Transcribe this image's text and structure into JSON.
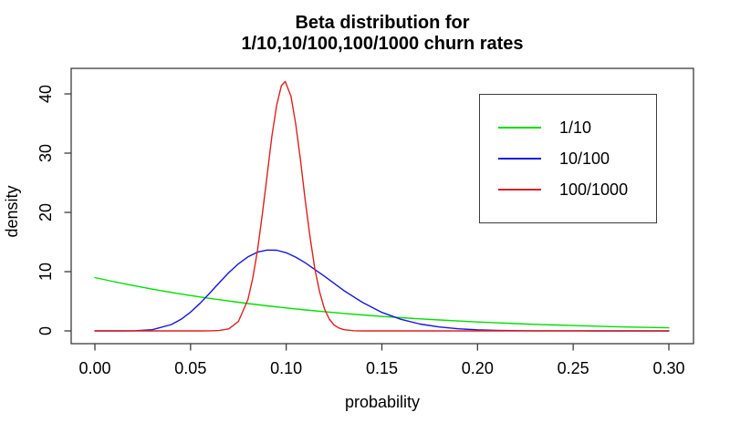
{
  "title": {
    "line1": "Beta distribution for",
    "line2": "1/10,10/100,100/1000 churn rates"
  },
  "chart_data": {
    "type": "line",
    "title": "Beta distribution for 1/10,10/100,100/1000 churn rates",
    "xlabel": "probability",
    "ylabel": "density",
    "xlim": [
      0,
      0.3
    ],
    "ylim": [
      0,
      42.1
    ],
    "grid": false,
    "legend_position": "top-right",
    "x_ticks": [
      0.0,
      0.05,
      0.1,
      0.15,
      0.2,
      0.25,
      0.3
    ],
    "x_tick_labels": [
      "0.00",
      "0.05",
      "0.10",
      "0.15",
      "0.20",
      "0.25",
      "0.30"
    ],
    "y_ticks": [
      0,
      10,
      20,
      30,
      40
    ],
    "y_tick_labels": [
      "0",
      "10",
      "20",
      "30",
      "40"
    ],
    "series": [
      {
        "name": "1/10",
        "color": "#00e000",
        "distribution": "Beta(1,9)",
        "points": [
          [
            0.0,
            9.0
          ],
          [
            0.01,
            8.31
          ],
          [
            0.02,
            7.66
          ],
          [
            0.03,
            7.05
          ],
          [
            0.04,
            6.49
          ],
          [
            0.05,
            5.97
          ],
          [
            0.06,
            5.49
          ],
          [
            0.07,
            5.04
          ],
          [
            0.08,
            4.62
          ],
          [
            0.09,
            4.23
          ],
          [
            0.1,
            3.87
          ],
          [
            0.11,
            3.54
          ],
          [
            0.12,
            3.24
          ],
          [
            0.13,
            2.95
          ],
          [
            0.14,
            2.69
          ],
          [
            0.15,
            2.45
          ],
          [
            0.16,
            2.23
          ],
          [
            0.17,
            2.03
          ],
          [
            0.18,
            1.84
          ],
          [
            0.19,
            1.67
          ],
          [
            0.2,
            1.51
          ],
          [
            0.21,
            1.37
          ],
          [
            0.22,
            1.23
          ],
          [
            0.23,
            1.11
          ],
          [
            0.24,
            1.0
          ],
          [
            0.25,
            0.9
          ],
          [
            0.26,
            0.81
          ],
          [
            0.27,
            0.73
          ],
          [
            0.28,
            0.65
          ],
          [
            0.29,
            0.58
          ],
          [
            0.3,
            0.52
          ]
        ]
      },
      {
        "name": "10/100",
        "color": "#1515e0",
        "distribution": "Beta(10,90)",
        "points": [
          [
            0.0,
            0.0
          ],
          [
            0.01,
            0.0
          ],
          [
            0.02,
            0.01
          ],
          [
            0.03,
            0.2
          ],
          [
            0.04,
            1.08
          ],
          [
            0.045,
            1.96
          ],
          [
            0.05,
            3.17
          ],
          [
            0.055,
            4.66
          ],
          [
            0.06,
            6.37
          ],
          [
            0.065,
            8.14
          ],
          [
            0.07,
            9.84
          ],
          [
            0.075,
            11.33
          ],
          [
            0.08,
            12.5
          ],
          [
            0.085,
            13.29
          ],
          [
            0.09,
            13.65
          ],
          [
            0.095,
            13.61
          ],
          [
            0.1,
            13.19
          ],
          [
            0.105,
            12.44
          ],
          [
            0.11,
            11.5
          ],
          [
            0.12,
            9.21
          ],
          [
            0.13,
            6.83
          ],
          [
            0.14,
            4.78
          ],
          [
            0.15,
            3.13
          ],
          [
            0.16,
            1.95
          ],
          [
            0.17,
            1.16
          ],
          [
            0.18,
            0.66
          ],
          [
            0.19,
            0.36
          ],
          [
            0.2,
            0.19
          ],
          [
            0.21,
            0.1
          ],
          [
            0.22,
            0.05
          ],
          [
            0.23,
            0.02
          ],
          [
            0.24,
            0.01
          ],
          [
            0.25,
            0.01
          ],
          [
            0.26,
            0.0
          ],
          [
            0.28,
            0.0
          ],
          [
            0.3,
            0.0
          ]
        ]
      },
      {
        "name": "100/1000",
        "color": "#e02020",
        "distribution": "Beta(100,900)",
        "points": [
          [
            0.0,
            0.0
          ],
          [
            0.04,
            0.0
          ],
          [
            0.05,
            0.0
          ],
          [
            0.055,
            0.0
          ],
          [
            0.06,
            0.01
          ],
          [
            0.065,
            0.06
          ],
          [
            0.07,
            0.36
          ],
          [
            0.075,
            1.6
          ],
          [
            0.08,
            5.3
          ],
          [
            0.0825,
            8.9
          ],
          [
            0.085,
            13.6
          ],
          [
            0.0875,
            19.7
          ],
          [
            0.09,
            26.2
          ],
          [
            0.0925,
            32.8
          ],
          [
            0.095,
            38.1
          ],
          [
            0.0975,
            41.4
          ],
          [
            0.0995,
            42.1
          ],
          [
            0.1025,
            39.6
          ],
          [
            0.105,
            34.9
          ],
          [
            0.1075,
            28.7
          ],
          [
            0.11,
            21.9
          ],
          [
            0.1125,
            15.7
          ],
          [
            0.115,
            10.4
          ],
          [
            0.1175,
            6.5
          ],
          [
            0.12,
            3.7
          ],
          [
            0.1225,
            2.0
          ],
          [
            0.125,
            1.0
          ],
          [
            0.1275,
            0.49
          ],
          [
            0.13,
            0.21
          ],
          [
            0.135,
            0.03
          ],
          [
            0.14,
            0.0
          ],
          [
            0.15,
            0.0
          ],
          [
            0.2,
            0.0
          ],
          [
            0.25,
            0.0
          ],
          [
            0.3,
            0.0
          ]
        ]
      }
    ]
  }
}
